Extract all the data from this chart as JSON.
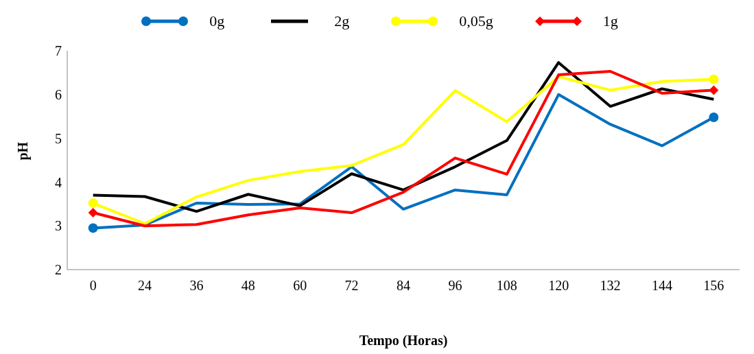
{
  "chart_data": {
    "type": "line",
    "xlabel": "Tempo (Horas)",
    "ylabel": "pH",
    "categories": [
      "0",
      "24",
      "36",
      "48",
      "60",
      "72",
      "84",
      "96",
      "108",
      "120",
      "132",
      "144",
      "156"
    ],
    "series": [
      {
        "name": "0g",
        "color": "#0070c0",
        "values": [
          2.95,
          3.02,
          3.52,
          3.49,
          3.5,
          4.35,
          3.38,
          3.82,
          3.71,
          6.0,
          5.32,
          4.83,
          5.48
        ]
      },
      {
        "name": "2g",
        "color": "#000000",
        "values": [
          3.7,
          3.67,
          3.33,
          3.72,
          3.46,
          4.19,
          3.82,
          4.35,
          4.95,
          6.73,
          5.73,
          6.13,
          5.89
        ]
      },
      {
        "name": "0,05g",
        "color": "#ffff00",
        "values": [
          3.52,
          3.05,
          3.66,
          4.04,
          4.24,
          4.38,
          4.86,
          6.09,
          5.38,
          6.41,
          6.1,
          6.3,
          6.35
        ]
      },
      {
        "name": "1g",
        "color": "#ff0000",
        "values": [
          3.3,
          3.0,
          3.03,
          3.25,
          3.41,
          3.3,
          3.77,
          4.55,
          4.18,
          6.45,
          6.53,
          6.03,
          6.1
        ]
      }
    ],
    "ylim": [
      2,
      7
    ],
    "yticks": [
      2,
      3,
      4,
      5,
      6,
      7
    ],
    "legend": "top",
    "grid": false
  }
}
